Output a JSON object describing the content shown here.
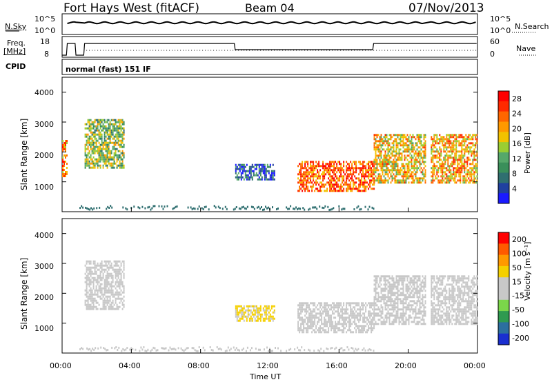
{
  "header": {
    "station": "Fort Hays West (fitACF)",
    "beam": "Beam 04",
    "date": "07/Nov/2013"
  },
  "top_panels": {
    "nsky_label": "N.Sky",
    "nsearch_label": "N.Search",
    "nsky_ticks": [
      "10^5",
      "10^0"
    ],
    "nsearch_ticks": [
      "10^5",
      "10^0"
    ],
    "freq_label": "Freq.",
    "freq_unit": "[MHz]",
    "freq_ticks": [
      "18",
      "8"
    ],
    "nave_label": "Nave",
    "nave_ticks": [
      "60",
      "0"
    ],
    "cpid_label": "CPID",
    "cpid_value": "normal (fast) 151 IF"
  },
  "chart_data": [
    {
      "type": "heatmap",
      "title": "",
      "quantity": "Power",
      "xlabel": "Time UT",
      "ylabel": "Slant Range [km]",
      "ytick_labels": [
        "1000",
        "2000",
        "3000",
        "4000"
      ],
      "ylim": [
        0,
        4500
      ],
      "xtick_labels": [
        "00:00",
        "04:00",
        "08:00",
        "12:00",
        "16:00",
        "20:00",
        "00:00"
      ],
      "xlim_hours": [
        0,
        24
      ],
      "colorbar": {
        "label": "Power [dB]",
        "ticks": [
          "4",
          "8",
          "12",
          "16",
          "20",
          "24",
          "28"
        ],
        "range": [
          0,
          30
        ],
        "colors": [
          "#1a1aff",
          "#2040a0",
          "#2f6f70",
          "#3a8f5a",
          "#56a86a",
          "#9acd32",
          "#f2c200",
          "#ff9900",
          "#ff6600",
          "#ff2a00",
          "#ff0000"
        ]
      },
      "regions": [
        {
          "t0": 0.0,
          "t1": 0.3,
          "r0": 1200,
          "r1": 2400,
          "value": 22
        },
        {
          "t0": 1.3,
          "t1": 3.6,
          "r0": 1500,
          "r1": 3100,
          "value": 14
        },
        {
          "t0": 10.0,
          "t1": 12.3,
          "r0": 1100,
          "r1": 1600,
          "value": 6
        },
        {
          "t0": 13.6,
          "t1": 18.0,
          "r0": 700,
          "r1": 1700,
          "value": 24
        },
        {
          "t0": 18.0,
          "t1": 21.0,
          "r0": 1000,
          "r1": 2600,
          "value": 18
        },
        {
          "t0": 21.3,
          "t1": 24.0,
          "r0": 1000,
          "r1": 2600,
          "value": 20
        }
      ]
    },
    {
      "type": "heatmap",
      "title": "",
      "quantity": "Velocity",
      "xlabel": "Time UT",
      "ylabel": "Slant Range [km]",
      "ytick_labels": [
        "1000",
        "2000",
        "3000",
        "4000"
      ],
      "ylim": [
        0,
        4500
      ],
      "xtick_labels": [
        "00:00",
        "04:00",
        "08:00",
        "12:00",
        "16:00",
        "20:00",
        "00:00"
      ],
      "xlim_hours": [
        0,
        24
      ],
      "colorbar": {
        "label": "Velocity [m s⁻¹]",
        "ticks": [
          "200",
          "100",
          "50",
          "15",
          "-15",
          "-50",
          "-100",
          "-200"
        ],
        "range": [
          -250,
          250
        ],
        "colors": [
          "#1a2fd0",
          "#2c6fa0",
          "#2f9a50",
          "#7bd64a",
          "#c8c8c8",
          "#c8c8c8",
          "#f5d000",
          "#ff9900",
          "#ff5a00",
          "#ff0000"
        ]
      },
      "regions": [
        {
          "t0": 1.3,
          "t1": 3.6,
          "r0": 1500,
          "r1": 3100,
          "value": 0
        },
        {
          "t0": 10.0,
          "t1": 12.3,
          "r0": 1100,
          "r1": 1600,
          "value": 60
        },
        {
          "t0": 13.6,
          "t1": 18.0,
          "r0": 700,
          "r1": 1700,
          "value": 0
        },
        {
          "t0": 18.0,
          "t1": 21.0,
          "r0": 1000,
          "r1": 2600,
          "value": 0
        },
        {
          "t0": 21.3,
          "t1": 24.0,
          "r0": 1000,
          "r1": 2600,
          "value": 0
        }
      ]
    }
  ],
  "time_axis": {
    "label": "Time UT",
    "ticks": [
      "00:00",
      "04:00",
      "08:00",
      "12:00",
      "16:00",
      "20:00",
      "00:00"
    ]
  }
}
